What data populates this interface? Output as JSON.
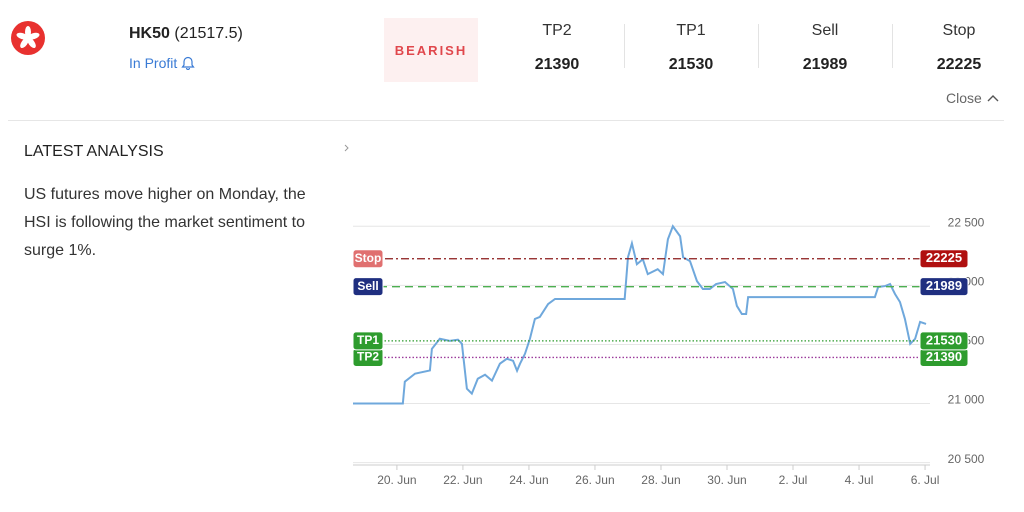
{
  "header": {
    "symbol": "HK50",
    "price": "(21517.5)",
    "status": "In Profit",
    "signal": "BEARISH",
    "close": "Close"
  },
  "analysis": {
    "title": "LATEST ANALYSIS",
    "text": "US futures move higher on Monday, the HSI is following the market sentiment to surge 1%."
  },
  "chart_data": {
    "type": "line",
    "x": [
      18.67,
      20.18,
      20.24,
      20.55,
      21.0,
      21.06,
      21.3,
      21.6,
      21.85,
      21.97,
      22.12,
      22.27,
      22.45,
      22.67,
      22.88,
      23.12,
      23.33,
      23.52,
      23.64,
      23.73,
      23.88,
      24.03,
      24.18,
      24.33,
      24.58,
      24.79,
      26.9,
      27.0,
      27.12,
      27.27,
      27.45,
      27.6,
      27.9,
      28.06,
      28.21,
      28.36,
      28.58,
      28.67,
      28.88,
      29.09,
      29.27,
      29.48,
      29.67,
      29.94,
      30.18,
      30.3,
      30.45,
      30.58,
      30.64,
      34.48,
      34.58,
      34.79,
      34.94,
      35.09,
      35.24,
      35.39,
      35.55,
      35.7,
      35.85,
      36.03
    ],
    "series": [
      {
        "color": "#6fa8dc",
        "values": [
          21000,
          21000,
          21185,
          21253,
          21280,
          21463,
          21548,
          21530,
          21540,
          21505,
          21126,
          21084,
          21210,
          21244,
          21194,
          21337,
          21379,
          21362,
          21278,
          21337,
          21421,
          21548,
          21716,
          21733,
          21842,
          21885,
          21885,
          22238,
          22356,
          22179,
          22221,
          22095,
          22137,
          22095,
          22390,
          22500,
          22415,
          22238,
          22205,
          22036,
          21969,
          21969,
          22011,
          22028,
          21969,
          21826,
          21758,
          21758,
          21901,
          21901,
          21986,
          21994,
          22011,
          21927,
          21859,
          21716,
          21505,
          21548,
          21691,
          21674
        ]
      }
    ],
    "xlim": [
      18.67,
      36.15
    ],
    "xticks": [
      {
        "value": 20,
        "label": "20. Jun"
      },
      {
        "value": 22,
        "label": "22. Jun"
      },
      {
        "value": 24,
        "label": "24. Jun"
      },
      {
        "value": 26,
        "label": "26. Jun"
      },
      {
        "value": 28,
        "label": "28. Jun"
      },
      {
        "value": 30,
        "label": "30. Jun"
      },
      {
        "value": 32,
        "label": "2. Jul"
      },
      {
        "value": 34,
        "label": "4. Jul"
      },
      {
        "value": 36,
        "label": "6. Jul"
      }
    ],
    "ylim": [
      20480,
      23230
    ],
    "yticks": [
      {
        "value": 20500,
        "label": "20 500"
      },
      {
        "value": 21000,
        "label": "21 000"
      },
      {
        "value": 21500,
        "label": "21 500"
      },
      {
        "value": 22000,
        "label": "22 000"
      },
      {
        "value": 22500,
        "label": "22 500"
      }
    ],
    "grid": true,
    "levels": [
      {
        "name": "TP2",
        "value": 21390,
        "color": "#2e9c2e",
        "line_color": "#9c3c9c",
        "dash": "dotted"
      },
      {
        "name": "TP1",
        "value": 21530,
        "color": "#2e9c2e",
        "line_color": "#2e9c2e",
        "dash": "dotted"
      },
      {
        "name": "Sell",
        "value": 21989,
        "color": "#1f2f80",
        "line_color": "#4caf50",
        "dash": "dashed"
      },
      {
        "name": "Stop",
        "value": 22225,
        "color": "#b01010",
        "line_color": "#8b1a1a",
        "dash": "dashdot"
      }
    ]
  }
}
